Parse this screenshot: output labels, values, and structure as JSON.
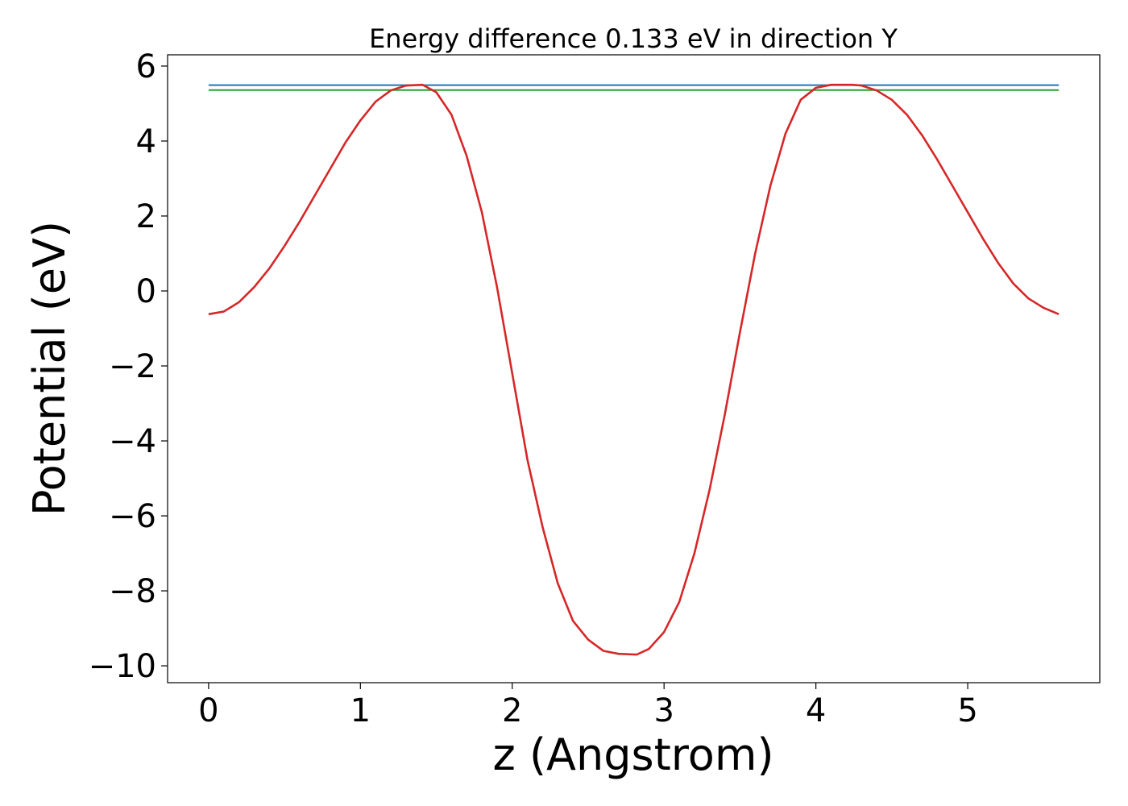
{
  "chart_data": {
    "type": "line",
    "title": "Energy difference 0.133 eV in direction Y",
    "xlabel": "z (Angstrom)",
    "ylabel": "Potential (eV)",
    "xlim": [
      -0.27,
      5.87
    ],
    "ylim": [
      -10.45,
      6.3
    ],
    "grid": false,
    "x_ticks": [
      0,
      1,
      2,
      3,
      4,
      5
    ],
    "x_tick_labels": [
      "0",
      "1",
      "2",
      "3",
      "4",
      "5"
    ],
    "y_ticks": [
      6,
      4,
      2,
      0,
      -2,
      -4,
      -6,
      -8,
      -10
    ],
    "y_tick_labels": [
      "6",
      "4",
      "2",
      "0",
      "−2",
      "−4",
      "−6",
      "−8",
      "−10"
    ],
    "series": [
      {
        "color": "#1f77b4",
        "x": [
          0,
          5.6
        ],
        "values": [
          5.49,
          5.49
        ]
      },
      {
        "color": "#2ca02c",
        "x": [
          0,
          5.6
        ],
        "values": [
          5.36,
          5.36
        ]
      },
      {
        "color": "#d62728",
        "x": [
          0,
          0.1,
          0.2,
          0.3,
          0.4,
          0.5,
          0.6,
          0.7,
          0.8,
          0.9,
          1.0,
          1.1,
          1.2,
          1.3,
          1.41,
          1.5,
          1.6,
          1.7,
          1.8,
          1.9,
          2.0,
          2.1,
          2.2,
          2.3,
          2.4,
          2.5,
          2.6,
          2.7,
          2.82,
          2.9,
          3.0,
          3.1,
          3.2,
          3.3,
          3.4,
          3.5,
          3.6,
          3.7,
          3.8,
          3.9,
          4.0,
          4.1,
          4.24,
          4.3,
          4.4,
          4.5,
          4.6,
          4.7,
          4.8,
          4.9,
          5.0,
          5.1,
          5.2,
          5.3,
          5.4,
          5.5,
          5.6
        ],
        "values": [
          -0.62,
          -0.55,
          -0.3,
          0.1,
          0.6,
          1.2,
          1.85,
          2.55,
          3.25,
          3.95,
          4.55,
          5.05,
          5.35,
          5.48,
          5.5,
          5.3,
          4.7,
          3.6,
          2.1,
          0.1,
          -2.2,
          -4.5,
          -6.3,
          -7.8,
          -8.8,
          -9.3,
          -9.6,
          -9.68,
          -9.7,
          -9.55,
          -9.1,
          -8.3,
          -7.0,
          -5.3,
          -3.3,
          -1.1,
          1.0,
          2.8,
          4.2,
          5.1,
          5.42,
          5.5,
          5.5,
          5.48,
          5.35,
          5.1,
          4.7,
          4.15,
          3.5,
          2.8,
          2.1,
          1.4,
          0.75,
          0.2,
          -0.2,
          -0.45,
          -0.62
        ]
      }
    ]
  }
}
